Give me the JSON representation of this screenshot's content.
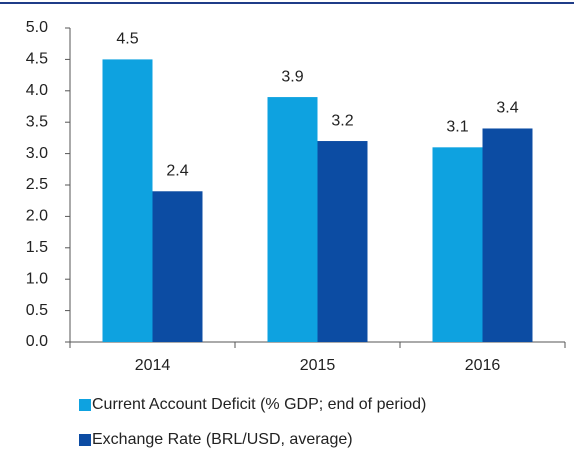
{
  "chart_data": {
    "type": "bar",
    "categories": [
      "2014",
      "2015",
      "2016"
    ],
    "series": [
      {
        "name": "Current Account Deficit (% GDP; end of period)",
        "color": "#0ea2e0",
        "values": [
          4.5,
          3.9,
          3.1
        ]
      },
      {
        "name": "Exchange Rate (BRL/USD, average)",
        "color": "#0c4ca3",
        "values": [
          2.4,
          3.2,
          3.4
        ]
      }
    ],
    "ylim": [
      0,
      5
    ],
    "yticks": [
      {
        "value": 0,
        "label": "0.0"
      },
      0.5,
      {
        "value": 1,
        "label": "1.0"
      },
      1.5,
      {
        "value": 2,
        "label": "2.0"
      },
      2.5,
      {
        "value": 3,
        "label": "3.0"
      },
      3.5,
      {
        "value": 4,
        "label": "4.0"
      },
      4.5,
      {
        "value": 5,
        "label": "5.0"
      }
    ],
    "grid": false,
    "legend": "bottom"
  }
}
